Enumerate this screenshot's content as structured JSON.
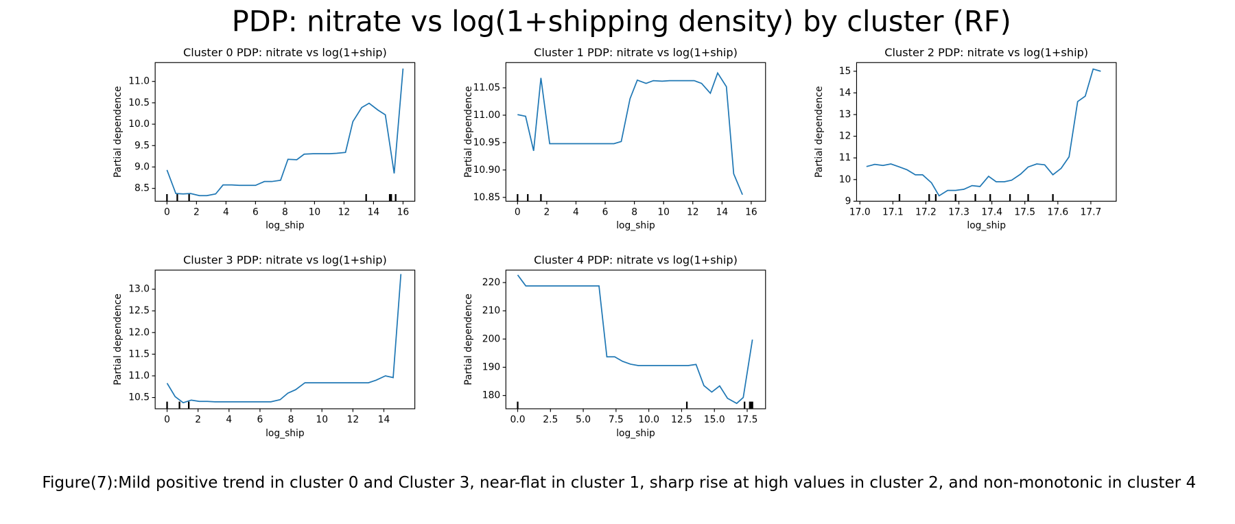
{
  "title": "PDP: nitrate vs log(1+shipping density) by cluster (RF)",
  "caption": "Figure(7):Mild positive trend in cluster 0 and Cluster 3, near-flat in cluster 1, sharp rise at high values in cluster 2, and non-monotonic in cluster 4",
  "chart_data": [
    {
      "type": "line",
      "title": "Cluster 0  PDP: nitrate vs log(1+ship)",
      "xlabel": "log_ship",
      "ylabel": "Partial dependence",
      "color": "#1f77b4",
      "x": [
        0,
        0.6,
        1.1,
        1.6,
        2.2,
        2.7,
        3.3,
        3.8,
        4.4,
        4.9,
        5.5,
        6.0,
        6.6,
        7.1,
        7.7,
        8.2,
        8.8,
        9.3,
        9.9,
        10.4,
        11.0,
        11.5,
        12.1,
        12.6,
        13.2,
        13.7,
        14.3,
        14.8,
        15.4,
        16.0
      ],
      "values": [
        8.93,
        8.38,
        8.37,
        8.38,
        8.33,
        8.33,
        8.37,
        8.58,
        8.58,
        8.57,
        8.57,
        8.57,
        8.66,
        8.66,
        8.69,
        9.18,
        9.17,
        9.3,
        9.31,
        9.31,
        9.31,
        9.32,
        9.34,
        10.06,
        10.39,
        10.49,
        10.33,
        10.22,
        8.85,
        11.3
      ],
      "rug": [
        0,
        0.7,
        1.5,
        13.5,
        15.1,
        15.2,
        15.5
      ],
      "xlim": [
        -0.8,
        16.8
      ],
      "ylim": [
        8.2,
        11.44
      ],
      "xticks": [
        0,
        2,
        4,
        6,
        8,
        10,
        12,
        14,
        16
      ],
      "yticks": [
        8.5,
        {
          "value": 9,
          "label": "9.0"
        },
        9.5,
        {
          "value": 10,
          "label": "10.0"
        },
        10.5,
        {
          "value": 11,
          "label": "11.0"
        }
      ]
    },
    {
      "type": "line",
      "title": "Cluster 1  PDP: nitrate vs log(1+ship)",
      "xlabel": "log_ship",
      "ylabel": "Partial dependence",
      "color": "#1f77b4",
      "x": [
        0,
        0.55,
        1.1,
        1.6,
        2.2,
        2.7,
        3.3,
        3.8,
        4.4,
        4.9,
        5.5,
        6.0,
        6.6,
        7.1,
        7.7,
        8.2,
        8.8,
        9.3,
        9.9,
        10.4,
        11.0,
        11.5,
        12.1,
        12.6,
        13.2,
        13.7,
        14.3,
        14.8,
        15.4
      ],
      "values": [
        11.001,
        10.998,
        10.935,
        11.068,
        10.948,
        10.948,
        10.948,
        10.948,
        10.948,
        10.948,
        10.948,
        10.948,
        10.948,
        10.952,
        11.03,
        11.064,
        11.058,
        11.063,
        11.062,
        11.063,
        11.063,
        11.063,
        11.063,
        11.058,
        11.04,
        11.077,
        11.052,
        10.893,
        10.855
      ],
      "rug": [
        0,
        0.7,
        1.6
      ],
      "xlim": [
        -0.8,
        16.98
      ],
      "ylim": [
        10.843,
        11.096
      ],
      "xticks": [
        0,
        2,
        4,
        6,
        8,
        10,
        12,
        14,
        16
      ],
      "yticks": [
        10.85,
        {
          "value": 10.9,
          "label": "10.90"
        },
        10.95,
        {
          "value": 11,
          "label": "11.00"
        },
        11.05
      ]
    },
    {
      "type": "line",
      "title": "Cluster 2  PDP: nitrate vs log(1+ship)",
      "xlabel": "log_ship",
      "ylabel": "Partial dependence",
      "color": "#1f77b4",
      "x": [
        17.02,
        17.045,
        17.07,
        17.094,
        17.12,
        17.143,
        17.168,
        17.19,
        17.217,
        17.24,
        17.266,
        17.29,
        17.315,
        17.34,
        17.364,
        17.39,
        17.413,
        17.438,
        17.46,
        17.487,
        17.51,
        17.536,
        17.56,
        17.585,
        17.61,
        17.634,
        17.66,
        17.683,
        17.707,
        17.73
      ],
      "values": [
        10.6,
        10.7,
        10.65,
        10.72,
        10.58,
        10.45,
        10.22,
        10.22,
        9.85,
        9.25,
        9.5,
        9.5,
        9.55,
        9.72,
        9.68,
        10.15,
        9.9,
        9.9,
        9.97,
        10.25,
        10.58,
        10.72,
        10.68,
        10.22,
        10.52,
        11.05,
        13.6,
        13.85,
        15.1,
        15.0
      ],
      "rug": [
        17.12,
        17.21,
        17.23,
        17.29,
        17.35,
        17.395,
        17.455,
        17.51,
        17.585
      ],
      "xlim": [
        16.99,
        17.777
      ],
      "ylim": [
        9,
        15.4
      ],
      "xticks": [
        {
          "value": 17,
          "label": "17.0"
        },
        17.1,
        17.2,
        17.3,
        17.4,
        17.5,
        17.6,
        17.7
      ],
      "yticks": [
        9,
        10,
        11,
        12,
        13,
        14,
        15
      ]
    },
    {
      "type": "line",
      "title": "Cluster 3  PDP: nitrate vs log(1+ship)",
      "xlabel": "log_ship",
      "ylabel": "Partial dependence",
      "color": "#1f77b4",
      "x": [
        0,
        0.52,
        1.04,
        1.56,
        2.08,
        2.6,
        3.1,
        3.6,
        4.2,
        4.7,
        5.2,
        5.7,
        6.2,
        6.7,
        7.3,
        7.8,
        8.3,
        8.9,
        9.4,
        9.9,
        10.4,
        11.0,
        11.5,
        12.0,
        12.5,
        13.0,
        13.5,
        14.1,
        14.6,
        15.1
      ],
      "values": [
        10.83,
        10.52,
        10.38,
        10.44,
        10.41,
        10.41,
        10.4,
        10.4,
        10.4,
        10.4,
        10.4,
        10.4,
        10.4,
        10.4,
        10.45,
        10.6,
        10.68,
        10.84,
        10.84,
        10.84,
        10.84,
        10.84,
        10.84,
        10.84,
        10.84,
        10.84,
        10.9,
        11.0,
        10.96,
        13.35
      ],
      "rug": [
        0,
        0.8,
        1.4
      ],
      "xlim": [
        -0.77,
        16.0
      ],
      "ylim": [
        10.24,
        13.44
      ],
      "xticks": [
        0,
        2,
        4,
        6,
        8,
        10,
        12,
        14
      ],
      "yticks": [
        10.5,
        {
          "value": 11,
          "label": "11.0"
        },
        11.5,
        {
          "value": 12,
          "label": "12.0"
        },
        12.5,
        {
          "value": 13,
          "label": "13.0"
        }
      ]
    },
    {
      "type": "line",
      "title": "Cluster 4  PDP: nitrate vs log(1+ship)",
      "xlabel": "log_ship",
      "ylabel": "Partial dependence",
      "color": "#1f77b4",
      "x": [
        0,
        0.62,
        1.2,
        1.8,
        2.5,
        3.1,
        3.7,
        4.3,
        4.9,
        5.5,
        6.2,
        6.8,
        7.4,
        8.0,
        8.6,
        9.2,
        9.8,
        10.5,
        11.1,
        11.7,
        12.3,
        13.0,
        13.6,
        14.2,
        14.8,
        15.4,
        16.0,
        16.7,
        17.2,
        17.9
      ],
      "values": [
        222.7,
        218.8,
        218.8,
        218.8,
        218.8,
        218.8,
        218.8,
        218.8,
        218.8,
        218.8,
        218.8,
        193.7,
        193.7,
        192.1,
        191.1,
        190.6,
        190.6,
        190.6,
        190.6,
        190.6,
        190.6,
        190.6,
        191.0,
        183.5,
        181.2,
        183.4,
        179.0,
        177.2,
        179.3,
        199.8
      ],
      "rug": [
        0,
        12.9,
        17.3,
        17.7,
        17.8,
        17.9
      ],
      "xlim": [
        -0.9,
        18.9
      ],
      "ylim": [
        175.3,
        224.4
      ],
      "xticks": [
        {
          "value": 0,
          "label": "0.0"
        },
        2.5,
        {
          "value": 5,
          "label": "5.0"
        },
        7.5,
        {
          "value": 10,
          "label": "10.0"
        },
        12.5,
        {
          "value": 15,
          "label": "15.0"
        },
        17.5
      ],
      "yticks": [
        180,
        190,
        200,
        210,
        220
      ]
    }
  ]
}
